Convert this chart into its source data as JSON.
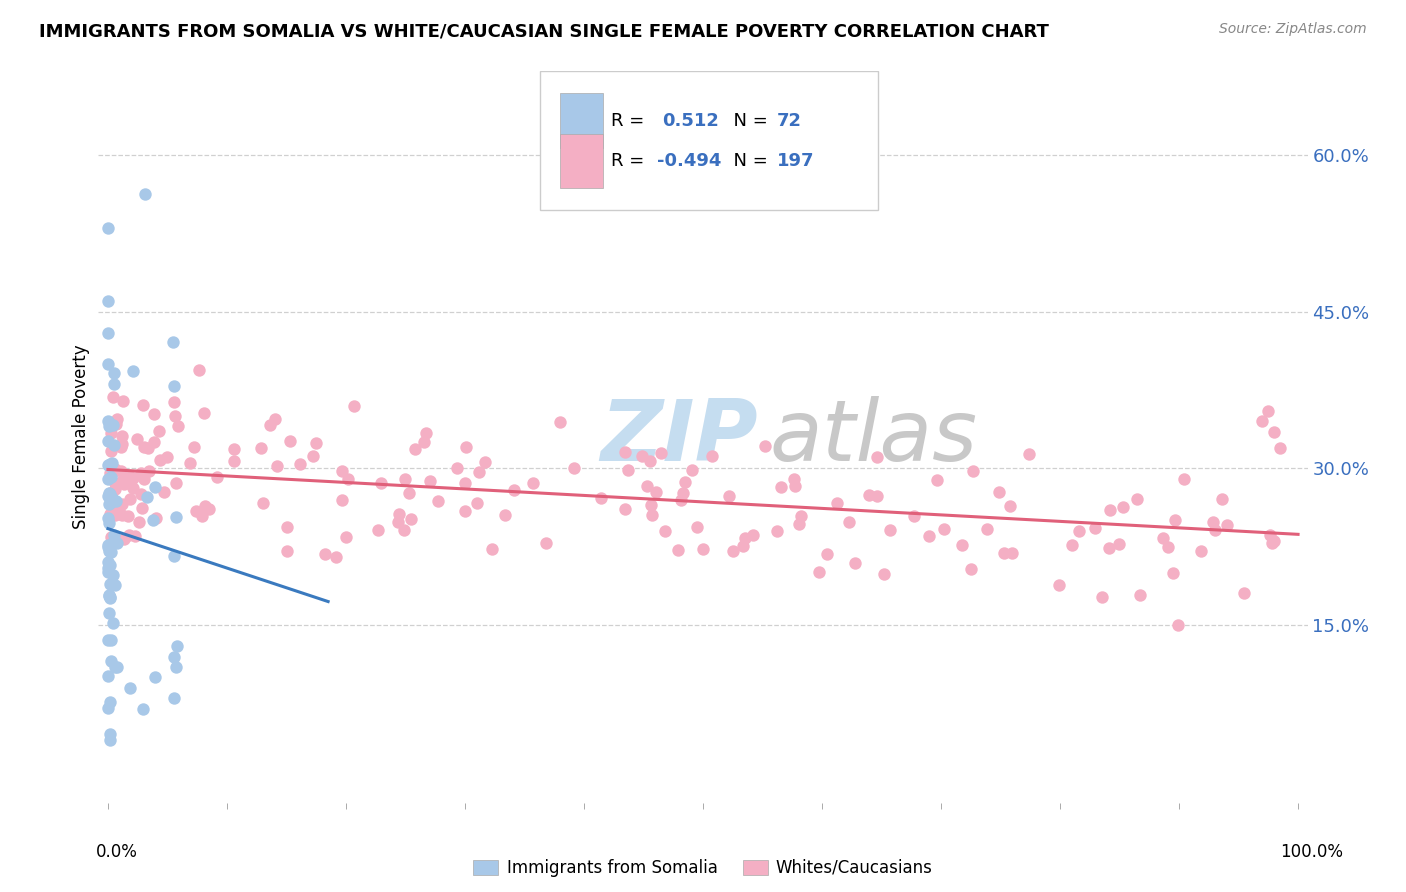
{
  "title": "IMMIGRANTS FROM SOMALIA VS WHITE/CAUCASIAN SINGLE FEMALE POVERTY CORRELATION CHART",
  "source": "Source: ZipAtlas.com",
  "ylabel": "Single Female Poverty",
  "ytick_values": [
    0.15,
    0.3,
    0.45,
    0.6
  ],
  "ytick_labels": [
    "15.0%",
    "30.0%",
    "45.0%",
    "60.0%"
  ],
  "legend_somalia_label": "Immigrants from Somalia",
  "legend_white_label": "Whites/Caucasians",
  "somalia_color": "#a8c8e8",
  "somalia_line_color": "#3a7abf",
  "white_color": "#f4afc4",
  "white_line_color": "#e0607a",
  "legend_text_color": "#3a6fbf",
  "watermark_zip_color": "#c5ddf0",
  "watermark_atlas_color": "#c8c8c8",
  "xlim": [
    -0.008,
    1.008
  ],
  "ylim": [
    -0.02,
    0.68
  ],
  "grid_color": "#d0d0d0",
  "title_fontsize": 13,
  "source_fontsize": 10
}
